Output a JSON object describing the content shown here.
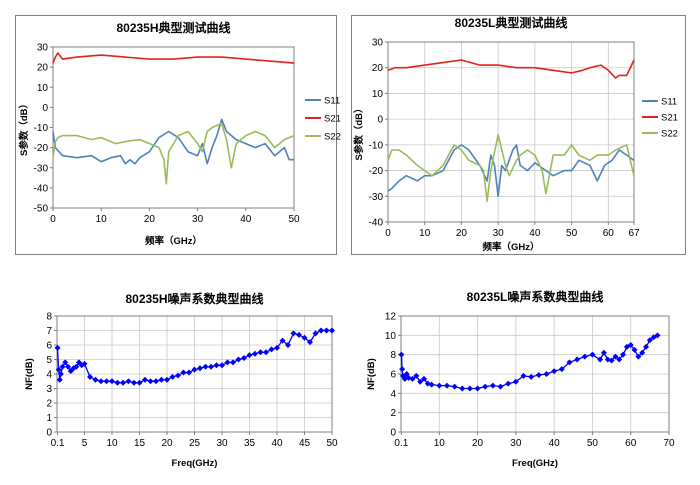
{
  "chart_data": [
    {
      "type": "line",
      "title": "80235H典型测试曲线",
      "xlabel": "频率（GHz）",
      "ylabel": "S参数（dB）",
      "xlim": [
        0,
        50
      ],
      "ylim": [
        -50,
        30
      ],
      "xticks": [
        "0",
        "10",
        "20",
        "30",
        "40",
        "50"
      ],
      "yticks": [
        "30",
        "20",
        "10",
        "0",
        "-10",
        "-20",
        "-30",
        "-40",
        "-50"
      ],
      "grid": false,
      "legend": "right",
      "series": [
        {
          "name": "S11",
          "color": "#4f81bd",
          "x": [
            0,
            0.5,
            2,
            5,
            8,
            10,
            12,
            14,
            15,
            16,
            17,
            18,
            20,
            22,
            24,
            26,
            28,
            30,
            31,
            32,
            33,
            34,
            35,
            36,
            38,
            40,
            42,
            44,
            46,
            48,
            49,
            50
          ],
          "y": [
            -12,
            -20,
            -24,
            -25,
            -24,
            -27,
            -25,
            -24,
            -28,
            -26,
            -28,
            -25,
            -22,
            -15,
            -12,
            -15,
            -22,
            -24,
            -18,
            -28,
            -20,
            -14,
            -6,
            -12,
            -16,
            -18,
            -20,
            -18,
            -24,
            -20,
            -26,
            -26
          ]
        },
        {
          "name": "S21",
          "color": "#e2231a",
          "x": [
            0,
            0.5,
            1,
            2,
            5,
            10,
            15,
            20,
            25,
            30,
            35,
            40,
            45,
            50
          ],
          "y": [
            22,
            25,
            27,
            24,
            25,
            26,
            25,
            24,
            24,
            25,
            25,
            24,
            23,
            22
          ]
        },
        {
          "name": "S22",
          "color": "#9bbb59",
          "x": [
            0,
            0.5,
            1,
            2,
            5,
            8,
            10,
            13,
            15,
            18,
            20,
            22,
            23,
            23.5,
            24,
            26,
            28,
            30,
            31,
            32,
            33,
            35,
            36,
            37,
            38,
            40,
            42,
            44,
            46,
            48,
            50
          ],
          "y": [
            -25,
            -17,
            -15,
            -14,
            -14,
            -16,
            -15,
            -18,
            -17,
            -16,
            -18,
            -20,
            -26,
            -38,
            -22,
            -14,
            -12,
            -18,
            -22,
            -12,
            -10,
            -8,
            -16,
            -30,
            -18,
            -14,
            -12,
            -14,
            -20,
            -16,
            -14
          ]
        }
      ]
    },
    {
      "type": "line",
      "title": "80235L典型测试曲线",
      "xlabel": "频率（GHz）",
      "ylabel": "S参数（dB）",
      "xlim": [
        0,
        67
      ],
      "ylim": [
        -40,
        30
      ],
      "xticks": [
        "0",
        "10",
        "20",
        "30",
        "40",
        "50",
        "60",
        "67"
      ],
      "yticks": [
        "30",
        "20",
        "10",
        "0",
        "-10",
        "-20",
        "-30",
        "-40"
      ],
      "grid": true,
      "legend": "right",
      "series": [
        {
          "name": "S11",
          "color": "#4f81bd",
          "x": [
            0,
            1,
            3,
            5,
            8,
            10,
            12,
            15,
            18,
            20,
            22,
            25,
            27,
            28,
            29,
            30,
            31,
            32,
            34,
            35,
            36,
            38,
            40,
            43,
            45,
            48,
            50,
            52,
            55,
            57,
            59,
            61,
            63,
            65,
            67
          ],
          "y": [
            -28,
            -27,
            -24,
            -22,
            -24,
            -22,
            -22,
            -20,
            -12,
            -10,
            -12,
            -18,
            -24,
            -14,
            -18,
            -30,
            -18,
            -20,
            -12,
            -10,
            -18,
            -20,
            -17,
            -20,
            -22,
            -20,
            -20,
            -16,
            -18,
            -24,
            -18,
            -16,
            -12,
            -14,
            -16
          ]
        },
        {
          "name": "S21",
          "color": "#e2231a",
          "x": [
            0,
            2,
            5,
            10,
            15,
            20,
            25,
            30,
            35,
            40,
            45,
            50,
            53,
            55,
            58,
            60,
            62,
            63,
            65,
            67
          ],
          "y": [
            19,
            20,
            20,
            21,
            22,
            23,
            21,
            21,
            20,
            20,
            19,
            18,
            19,
            20,
            21,
            19,
            16,
            17,
            17,
            23
          ]
        },
        {
          "name": "S22",
          "color": "#9bbb59",
          "x": [
            0,
            1,
            3,
            5,
            8,
            10,
            12,
            15,
            18,
            20,
            22,
            25,
            26,
            27,
            28,
            30,
            31,
            32,
            33,
            35,
            36,
            38,
            40,
            42,
            43,
            45,
            48,
            50,
            52,
            55,
            57,
            60,
            62,
            65,
            66,
            67
          ],
          "y": [
            -16,
            -12,
            -12,
            -14,
            -18,
            -20,
            -22,
            -18,
            -10,
            -12,
            -16,
            -18,
            -20,
            -32,
            -20,
            -6,
            -12,
            -18,
            -22,
            -16,
            -14,
            -12,
            -14,
            -20,
            -29,
            -14,
            -14,
            -10,
            -14,
            -16,
            -14,
            -14,
            -12,
            -10,
            -16,
            -22
          ]
        }
      ]
    },
    {
      "type": "line",
      "title": "80235H噪声系数典型曲线",
      "xlabel": "Freq(GHz)",
      "ylabel": "NF(dB)",
      "xlim": [
        0,
        50
      ],
      "ylim": [
        0,
        8
      ],
      "xticks": [
        "0.1",
        "5",
        "10",
        "15",
        "20",
        "25",
        "30",
        "35",
        "40",
        "45",
        "50"
      ],
      "yticks": [
        "8",
        "7",
        "6",
        "5",
        "4",
        "3",
        "2",
        "1",
        "0"
      ],
      "grid": true,
      "legend": "none",
      "series": [
        {
          "color": "#0000ff",
          "x": [
            0.1,
            0.3,
            0.5,
            0.7,
            1,
            1.5,
            2,
            2.5,
            3,
            3.5,
            4,
            4.5,
            5,
            6,
            7,
            8,
            9,
            10,
            11,
            12,
            13,
            14,
            15,
            16,
            17,
            18,
            19,
            20,
            21,
            22,
            23,
            24,
            25,
            26,
            27,
            28,
            29,
            30,
            31,
            32,
            33,
            34,
            35,
            36,
            37,
            38,
            39,
            40,
            41,
            42,
            43,
            44,
            45,
            46,
            47,
            48,
            49,
            50
          ],
          "y": [
            5.8,
            4.3,
            3.6,
            4.0,
            4.5,
            4.8,
            4.5,
            4.2,
            4.4,
            4.5,
            4.8,
            4.6,
            4.7,
            3.8,
            3.6,
            3.5,
            3.5,
            3.5,
            3.4,
            3.4,
            3.5,
            3.4,
            3.4,
            3.6,
            3.5,
            3.5,
            3.6,
            3.6,
            3.8,
            3.9,
            4.1,
            4.1,
            4.3,
            4.4,
            4.5,
            4.5,
            4.6,
            4.6,
            4.8,
            4.8,
            5.0,
            5.1,
            5.3,
            5.4,
            5.5,
            5.5,
            5.7,
            5.8,
            6.3,
            6.0,
            6.8,
            6.7,
            6.5,
            6.2,
            6.8,
            7.0,
            7.0,
            7.0
          ]
        }
      ]
    },
    {
      "type": "line",
      "title": "80235L噪声系数典型曲线",
      "xlabel": "Freq(GHz)",
      "ylabel": "NF(dB)",
      "xlim": [
        0,
        70
      ],
      "ylim": [
        0,
        12
      ],
      "xticks": [
        "0.1",
        "10",
        "20",
        "30",
        "40",
        "50",
        "60",
        "70"
      ],
      "yticks": [
        "12",
        "10",
        "8",
        "6",
        "4",
        "2",
        "0"
      ],
      "grid": true,
      "legend": "none",
      "series": [
        {
          "color": "#0000ff",
          "x": [
            0.1,
            0.3,
            0.5,
            1,
            1.5,
            2,
            3,
            4,
            5,
            6,
            7,
            8,
            10,
            12,
            14,
            16,
            18,
            20,
            22,
            24,
            26,
            28,
            30,
            32,
            34,
            36,
            38,
            40,
            42,
            44,
            46,
            48,
            50,
            52,
            53,
            54,
            55,
            56,
            57,
            58,
            59,
            60,
            61,
            62,
            63,
            64,
            65,
            66,
            67
          ],
          "y": [
            8.0,
            6.5,
            5.8,
            5.5,
            6.0,
            5.6,
            5.5,
            5.8,
            5.2,
            5.5,
            5.0,
            4.9,
            4.8,
            4.8,
            4.7,
            4.5,
            4.5,
            4.5,
            4.7,
            4.8,
            4.7,
            5.0,
            5.2,
            5.8,
            5.7,
            5.9,
            6.0,
            6.3,
            6.5,
            7.2,
            7.5,
            7.8,
            8.0,
            7.5,
            8.2,
            7.5,
            7.4,
            7.8,
            7.5,
            8.0,
            8.8,
            9.0,
            8.5,
            7.8,
            8.2,
            8.8,
            9.5,
            9.8,
            10.0
          ]
        }
      ]
    }
  ]
}
